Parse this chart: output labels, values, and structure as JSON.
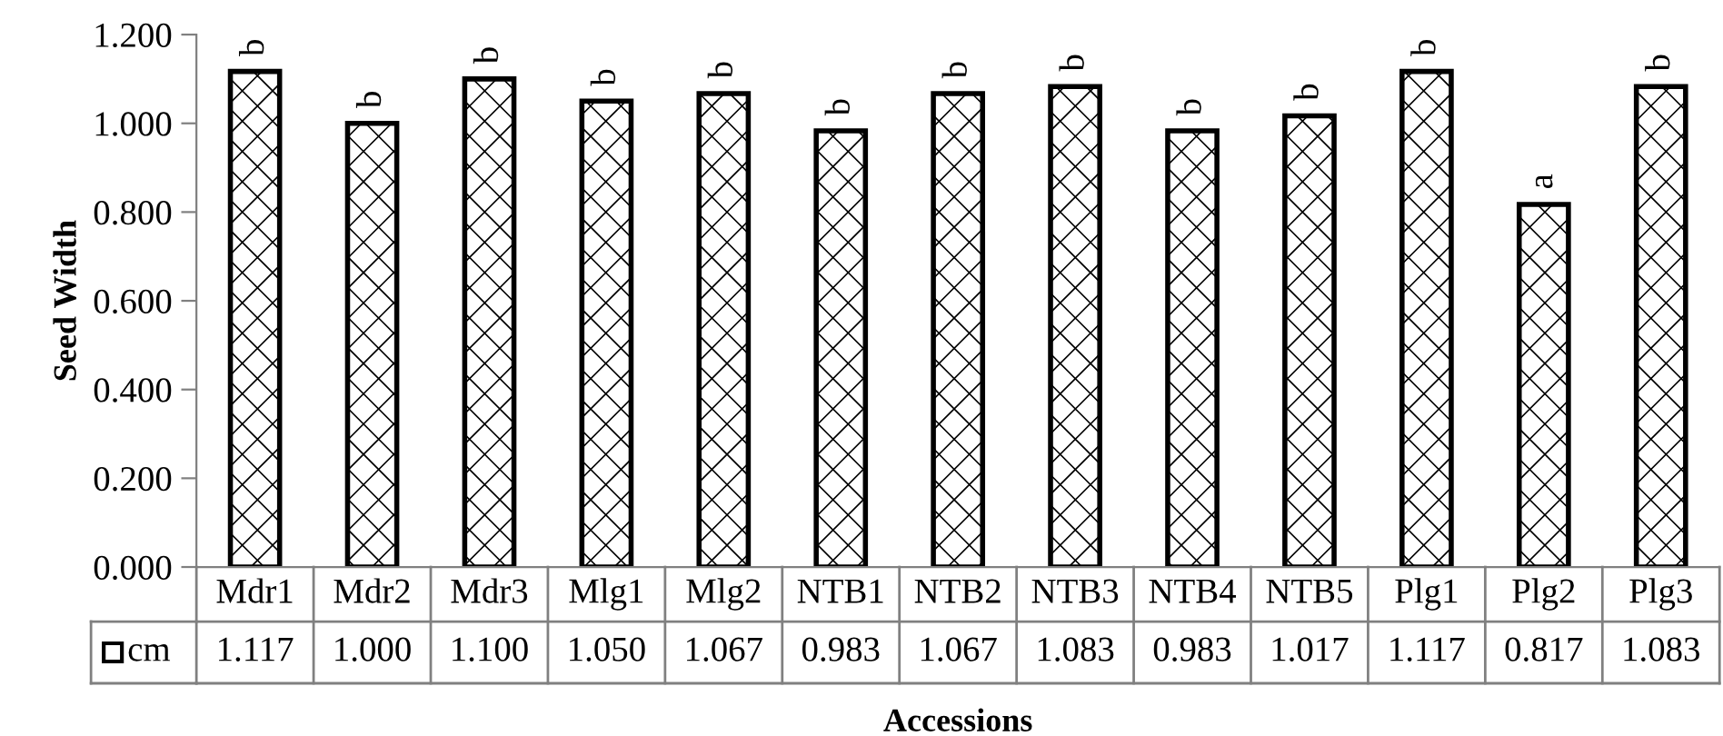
{
  "chart_data": {
    "type": "bar",
    "xlabel": "Accessions",
    "ylabel": "Seed Width",
    "categories": [
      "Mdr1",
      "Mdr2",
      "Mdr3",
      "Mlg1",
      "Mlg2",
      "NTB1",
      "NTB2",
      "NTB3",
      "NTB4",
      "NTB5",
      "Plg1",
      "Plg2",
      "Plg3"
    ],
    "series": [
      {
        "name": "cm",
        "color": "#000000",
        "values": [
          1.117,
          1.0,
          1.1,
          1.05,
          1.067,
          0.983,
          1.067,
          1.083,
          0.983,
          1.017,
          1.117,
          0.817,
          1.083
        ],
        "value_labels": [
          "1.117",
          "1.000",
          "1.100",
          "1.050",
          "1.067",
          "0.983",
          "1.067",
          "1.083",
          "0.983",
          "1.017",
          "1.117",
          "0.817",
          "1.083"
        ]
      }
    ],
    "ylim": [
      0,
      1.2
    ],
    "yticks": [
      {
        "value": 0,
        "label": "0.000"
      },
      {
        "value": 0.2,
        "label": "0.200"
      },
      {
        "value": 0.4,
        "label": "0.400"
      },
      {
        "value": 0.6,
        "label": "0.600"
      },
      {
        "value": 0.8,
        "label": "0.800"
      },
      {
        "value": 1.0,
        "label": "1.000"
      },
      {
        "value": 1.2,
        "label": "1.200"
      }
    ],
    "grid": false,
    "legend": "bottom",
    "data_labels": true,
    "annotations": [
      {
        "text": "b",
        "x": "Mdr1",
        "y": 1.117
      },
      {
        "text": "b",
        "x": "Mdr2",
        "y": 1.0
      },
      {
        "text": "b",
        "x": "Mdr3",
        "y": 1.1
      },
      {
        "text": "b",
        "x": "Mlg1",
        "y": 1.05
      },
      {
        "text": "b",
        "x": "Mlg2",
        "y": 1.067
      },
      {
        "text": "b",
        "x": "NTB1",
        "y": 0.983
      },
      {
        "text": "b",
        "x": "NTB2",
        "y": 1.067
      },
      {
        "text": "b",
        "x": "NTB3",
        "y": 1.083
      },
      {
        "text": "b",
        "x": "NTB4",
        "y": 0.983
      },
      {
        "text": "b",
        "x": "NTB5",
        "y": 1.017
      },
      {
        "text": "b",
        "x": "Plg1",
        "y": 1.117
      },
      {
        "text": "a",
        "x": "Plg2",
        "y": 0.817
      },
      {
        "text": "b",
        "x": "Plg3",
        "y": 1.083
      }
    ]
  }
}
